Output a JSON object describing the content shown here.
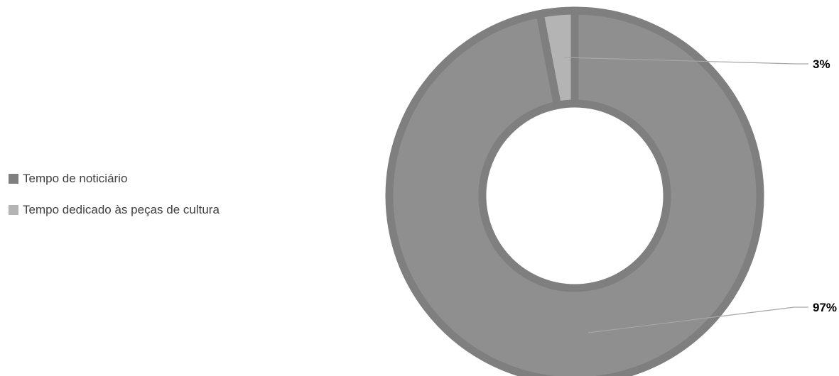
{
  "chart_data": {
    "type": "pie",
    "variant": "donut",
    "categories": [
      "Tempo de noticiário",
      "Tempo dedicado às peças de cultura"
    ],
    "values": [
      97,
      3
    ],
    "data_labels": [
      "97%",
      "3%"
    ],
    "colors": [
      "#8f8f8f",
      "#b4b4b4"
    ],
    "border_color": "#7f7f7f",
    "legend": {
      "position": "left",
      "items": [
        {
          "label": "Tempo de noticiário",
          "color": "#7f7f7f"
        },
        {
          "label": "Tempo dedicado às peças de cultura",
          "color": "#b4b4b4"
        }
      ]
    }
  }
}
